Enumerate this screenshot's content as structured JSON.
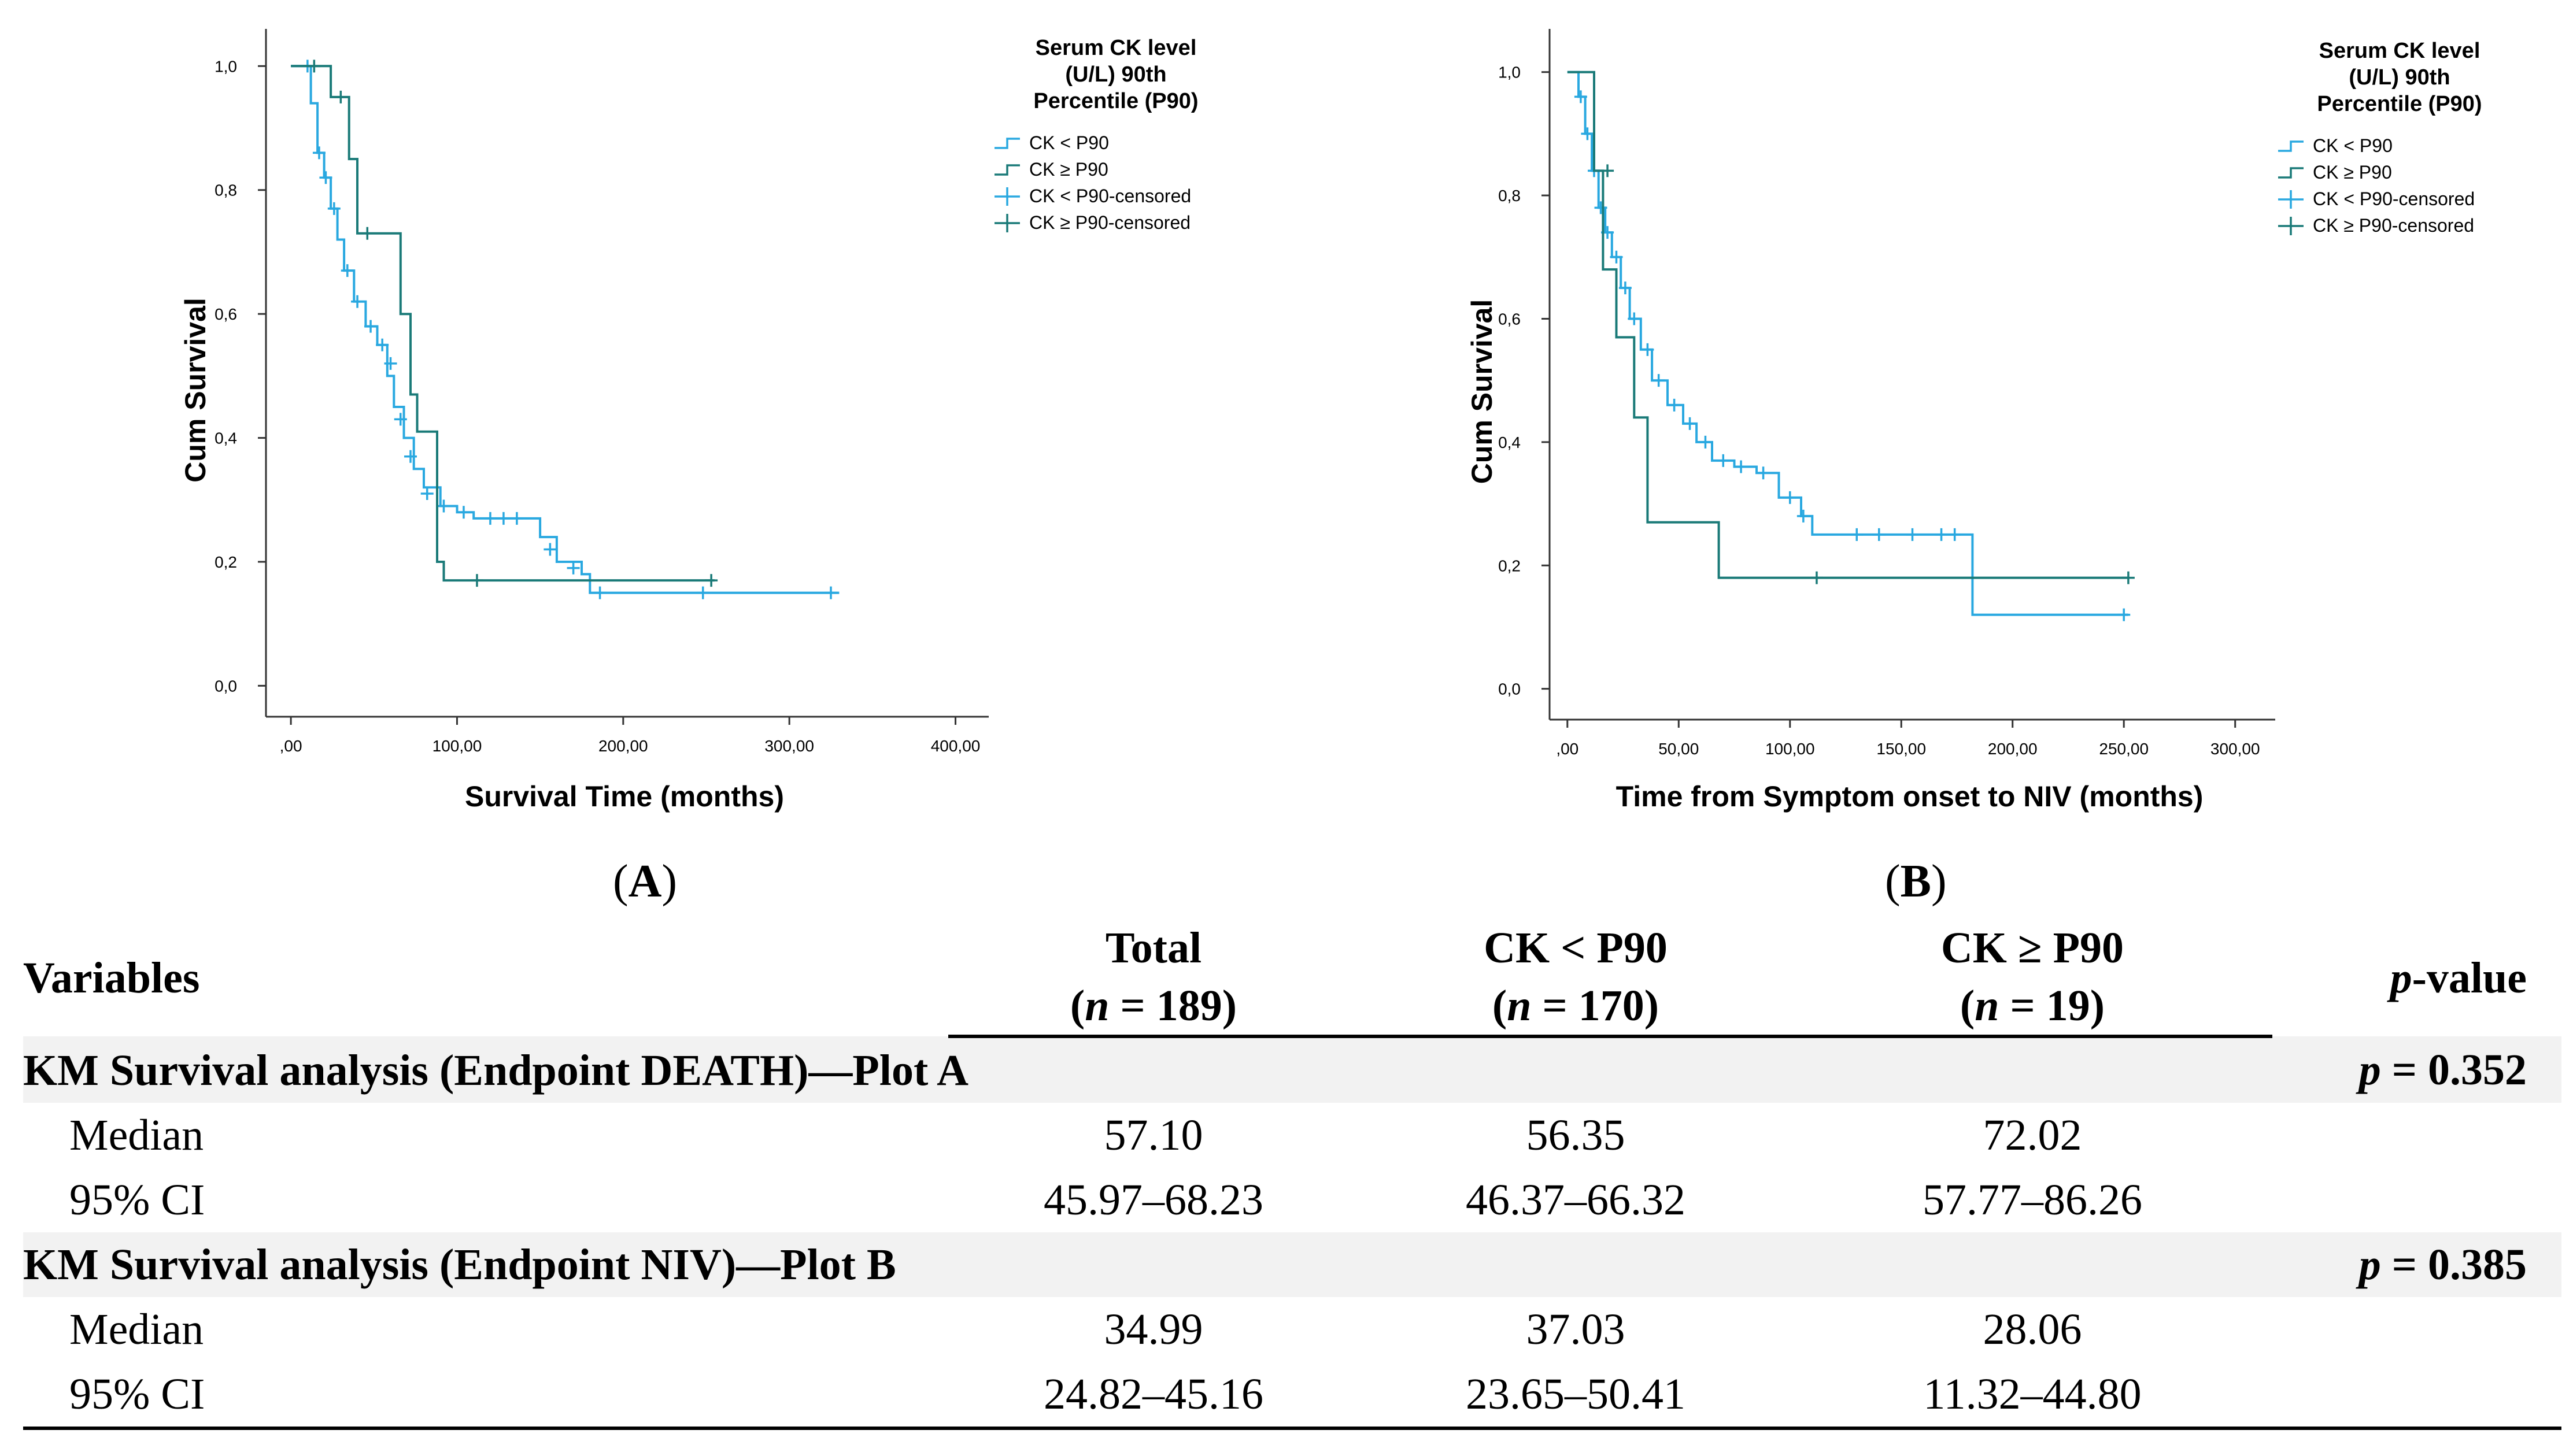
{
  "chart_data": [
    {
      "type": "line",
      "subtype": "kaplan-meier",
      "panel": "A",
      "xlabel": "Survival Time (months)",
      "ylabel": "Cum Survival",
      "xlim": [
        -15,
        420
      ],
      "ylim": [
        -0.05,
        1.06
      ],
      "xticks": [
        0,
        100,
        200,
        300,
        400
      ],
      "xtick_labels": [
        ",00",
        "100,00",
        "200,00",
        "300,00",
        "400,00"
      ],
      "yticks": [
        0,
        0.2,
        0.4,
        0.6,
        0.8,
        1.0
      ],
      "ytick_labels": [
        "0,0",
        "0,2",
        "0,4",
        "0,6",
        "0,8",
        "1,0"
      ],
      "legend": {
        "title": [
          "Serum CK level",
          "(U/L) 90th",
          "Percentile (P90)"
        ],
        "entries": [
          "CK < P90",
          "CK ≥ P90",
          "CK < P90-censored",
          "CK ≥ P90-censored"
        ],
        "placement": "top-right"
      },
      "series": [
        {
          "name": "CK < P90",
          "color": "#29a8e0",
          "points": [
            [
              0,
              1.0
            ],
            [
              8,
              1.0
            ],
            [
              12,
              0.94
            ],
            [
              16,
              0.86
            ],
            [
              20,
              0.82
            ],
            [
              24,
              0.77
            ],
            [
              28,
              0.72
            ],
            [
              32,
              0.67
            ],
            [
              38,
              0.62
            ],
            [
              45,
              0.58
            ],
            [
              52,
              0.55
            ],
            [
              58,
              0.5
            ],
            [
              62,
              0.45
            ],
            [
              68,
              0.4
            ],
            [
              74,
              0.35
            ],
            [
              80,
              0.32
            ],
            [
              90,
              0.29
            ],
            [
              100,
              0.28
            ],
            [
              110,
              0.27
            ],
            [
              150,
              0.24
            ],
            [
              160,
              0.2
            ],
            [
              175,
              0.18
            ],
            [
              180,
              0.15
            ],
            [
              330,
              0.15
            ]
          ],
          "censored": [
            [
              10,
              1.0
            ],
            [
              17,
              0.86
            ],
            [
              21,
              0.82
            ],
            [
              26,
              0.77
            ],
            [
              34,
              0.67
            ],
            [
              40,
              0.62
            ],
            [
              48,
              0.58
            ],
            [
              55,
              0.55
            ],
            [
              60,
              0.52
            ],
            [
              66,
              0.43
            ],
            [
              72,
              0.37
            ],
            [
              82,
              0.31
            ],
            [
              92,
              0.29
            ],
            [
              104,
              0.28
            ],
            [
              120,
              0.27
            ],
            [
              128,
              0.27
            ],
            [
              136,
              0.27
            ],
            [
              156,
              0.22
            ],
            [
              170,
              0.19
            ],
            [
              186,
              0.15
            ],
            [
              248,
              0.15
            ],
            [
              325,
              0.15
            ]
          ]
        },
        {
          "name": "CK ≥ P90",
          "color": "#1a7a78",
          "points": [
            [
              0,
              1.0
            ],
            [
              22,
              1.0
            ],
            [
              24,
              0.95
            ],
            [
              32,
              0.95
            ],
            [
              35,
              0.85
            ],
            [
              40,
              0.73
            ],
            [
              62,
              0.73
            ],
            [
              66,
              0.6
            ],
            [
              72,
              0.47
            ],
            [
              76,
              0.41
            ],
            [
              86,
              0.41
            ],
            [
              88,
              0.2
            ],
            [
              92,
              0.17
            ],
            [
              255,
              0.17
            ]
          ],
          "censored": [
            [
              14,
              1.0
            ],
            [
              30,
              0.95
            ],
            [
              46,
              0.73
            ],
            [
              112,
              0.17
            ],
            [
              253,
              0.17
            ]
          ]
        }
      ]
    },
    {
      "type": "line",
      "subtype": "kaplan-meier",
      "panel": "B",
      "xlabel": "Time from Symptom onset to NIV (months)",
      "ylabel": "Cum Survival",
      "xlim": [
        -8,
        318
      ],
      "ylim": [
        -0.05,
        1.07
      ],
      "xticks": [
        0,
        50,
        100,
        150,
        200,
        250,
        300
      ],
      "xtick_labels": [
        ",00",
        "50,00",
        "100,00",
        "150,00",
        "200,00",
        "250,00",
        "300,00"
      ],
      "yticks": [
        0,
        0.2,
        0.4,
        0.6,
        0.8,
        1.0
      ],
      "ytick_labels": [
        "0,0",
        "0,2",
        "0,4",
        "0,6",
        "0,8",
        "1,0"
      ],
      "legend": {
        "title": [
          "Serum CK level",
          "(U/L) 90th",
          "Percentile (P90)"
        ],
        "entries": [
          "CK < P90",
          "CK ≥ P90",
          "CK < P90-censored",
          "CK ≥ P90-censored"
        ],
        "placement": "top-right"
      },
      "series": [
        {
          "name": "CK < P90",
          "color": "#29a8e0",
          "points": [
            [
              0,
              1.0
            ],
            [
              5,
              0.96
            ],
            [
              8,
              0.9
            ],
            [
              11,
              0.84
            ],
            [
              14,
              0.78
            ],
            [
              17,
              0.74
            ],
            [
              20,
              0.7
            ],
            [
              24,
              0.65
            ],
            [
              28,
              0.6
            ],
            [
              33,
              0.55
            ],
            [
              38,
              0.5
            ],
            [
              45,
              0.46
            ],
            [
              52,
              0.43
            ],
            [
              58,
              0.4
            ],
            [
              65,
              0.37
            ],
            [
              75,
              0.36
            ],
            [
              85,
              0.35
            ],
            [
              95,
              0.31
            ],
            [
              105,
              0.28
            ],
            [
              110,
              0.25
            ],
            [
              180,
              0.25
            ],
            [
              182,
              0.12
            ],
            [
              252,
              0.12
            ]
          ],
          "censored": [
            [
              6,
              0.96
            ],
            [
              9,
              0.9
            ],
            [
              12,
              0.84
            ],
            [
              15,
              0.78
            ],
            [
              18,
              0.74
            ],
            [
              22,
              0.7
            ],
            [
              26,
              0.65
            ],
            [
              30,
              0.6
            ],
            [
              36,
              0.55
            ],
            [
              41,
              0.5
            ],
            [
              48,
              0.46
            ],
            [
              55,
              0.43
            ],
            [
              62,
              0.4
            ],
            [
              70,
              0.37
            ],
            [
              78,
              0.36
            ],
            [
              88,
              0.35
            ],
            [
              100,
              0.31
            ],
            [
              106,
              0.28
            ],
            [
              130,
              0.25
            ],
            [
              140,
              0.25
            ],
            [
              155,
              0.25
            ],
            [
              168,
              0.25
            ],
            [
              174,
              0.25
            ],
            [
              250,
              0.12
            ]
          ]
        },
        {
          "name": "CK ≥ P90",
          "color": "#1a7a78",
          "points": [
            [
              0,
              1.0
            ],
            [
              10,
              1.0
            ],
            [
              12,
              0.84
            ],
            [
              16,
              0.68
            ],
            [
              22,
              0.57
            ],
            [
              28,
              0.57
            ],
            [
              30,
              0.44
            ],
            [
              34,
              0.44
            ],
            [
              36,
              0.27
            ],
            [
              68,
              0.27
            ],
            [
              68,
              0.18
            ],
            [
              252,
              0.18
            ]
          ],
          "censored": [
            [
              18,
              0.84
            ],
            [
              112,
              0.18
            ],
            [
              252,
              0.18
            ]
          ]
        }
      ]
    }
  ],
  "panel_labels": {
    "a": "A",
    "b": "B"
  },
  "table": {
    "headers": {
      "variables": "Variables",
      "total_label": "Total",
      "total_n": "189",
      "ck_low_label": "CK < P90",
      "ck_low_n": "170",
      "ck_high_label": "CK ≥ P90",
      "ck_high_n": "19",
      "n_symbol": "n",
      "p_symbol": "p",
      "pvalue_suffix": "-value"
    },
    "sections": [
      {
        "title": "KM Survival analysis (Endpoint DEATH)—Plot A",
        "p": "0.352",
        "rows": [
          {
            "label": "Median",
            "total": "57.10",
            "ck_low": "56.35",
            "ck_high": "72.02"
          },
          {
            "label": "95% CI",
            "total": "45.97–68.23",
            "ck_low": "46.37–66.32",
            "ck_high": "57.77–86.26"
          }
        ]
      },
      {
        "title": "KM Survival analysis (Endpoint NIV)—Plot B",
        "p": "0.385",
        "rows": [
          {
            "label": "Median",
            "total": "34.99",
            "ck_low": "37.03",
            "ck_high": "28.06"
          },
          {
            "label": "95% CI",
            "total": "24.82–45.16",
            "ck_low": "23.65–50.41",
            "ck_high": "11.32–44.80"
          }
        ]
      }
    ]
  }
}
